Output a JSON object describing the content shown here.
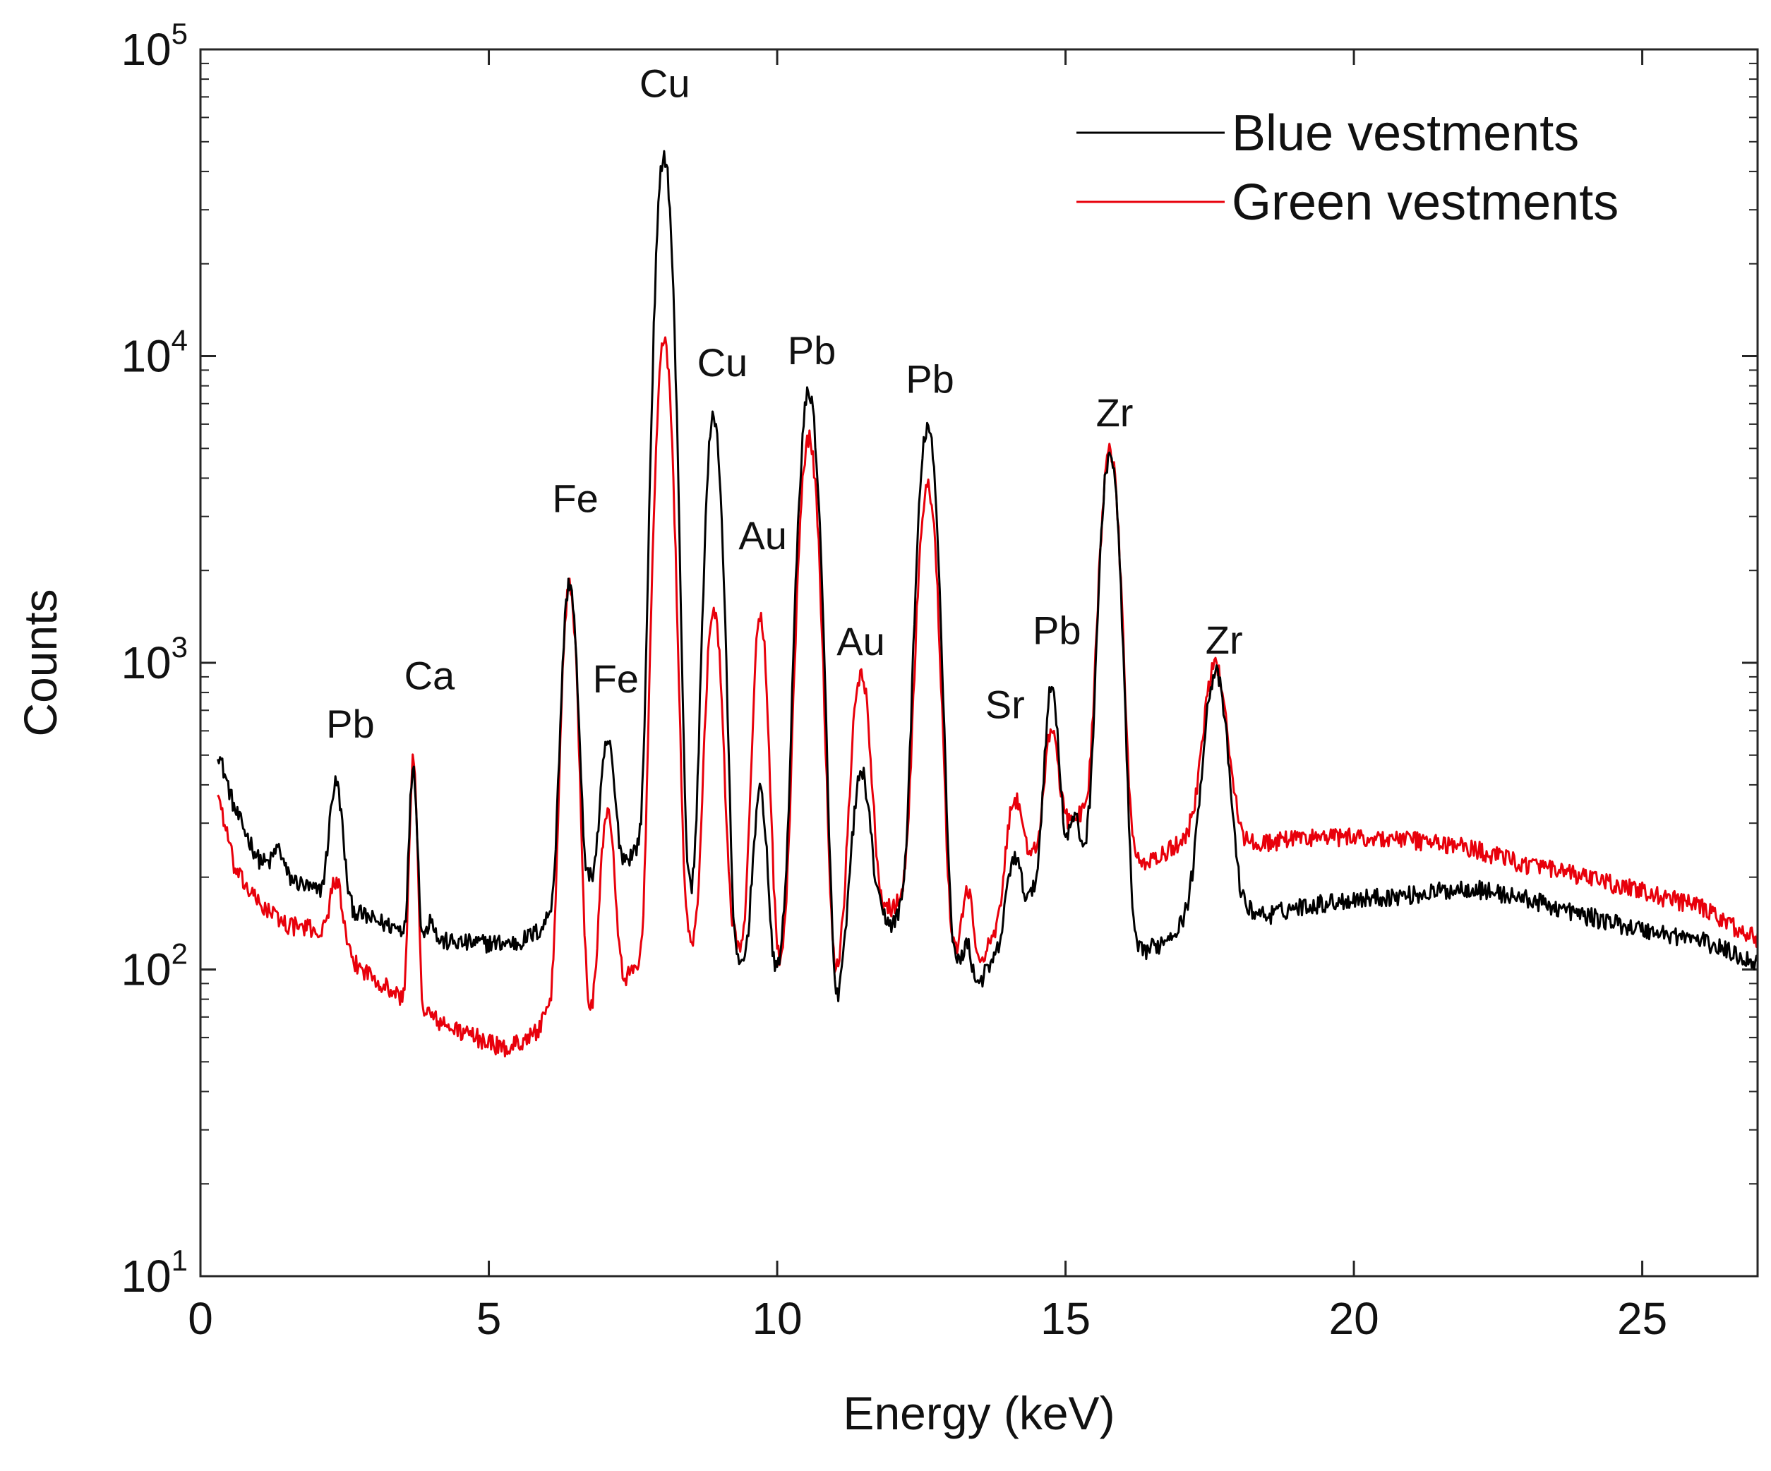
{
  "chart_data": {
    "type": "line",
    "xlabel": "Energy (keV)",
    "ylabel": "Counts",
    "xlim": [
      0,
      27
    ],
    "ylim": [
      10,
      100000
    ],
    "yscale": "log",
    "grid": false,
    "legend_position": "top-right",
    "x_ticks": [
      0,
      5,
      10,
      15,
      20,
      25
    ],
    "x_tick_labels": [
      "0",
      "5",
      "10",
      "15",
      "20",
      "25"
    ],
    "y_tick_exponents": [
      "1",
      "2",
      "3",
      "4",
      "5"
    ],
    "y_tick_base": "10",
    "legend": [
      {
        "label": "Blue vestments",
        "color": "#000000"
      },
      {
        "label": "Green vestments",
        "color": "#e8000b"
      }
    ],
    "series": [
      {
        "name": "Blue vestments",
        "color": "#000000",
        "background": [
          [
            0.3,
            520
          ],
          [
            0.6,
            330
          ],
          [
            1,
            230
          ],
          [
            1.5,
            200
          ],
          [
            2,
            180
          ],
          [
            2.5,
            160
          ],
          [
            3,
            145
          ],
          [
            3.5,
            135
          ],
          [
            4,
            125
          ],
          [
            4.5,
            122
          ],
          [
            5,
            122
          ],
          [
            5.5,
            122
          ],
          [
            5.9,
            135
          ],
          [
            6.2,
            170
          ],
          [
            6.6,
            190
          ],
          [
            7,
            200
          ],
          [
            7.4,
            230
          ],
          [
            7.9,
            290
          ],
          [
            8.3,
            180
          ],
          [
            8.8,
            160
          ],
          [
            9.3,
            100
          ],
          [
            9.6,
            110
          ],
          [
            9.9,
            80
          ],
          [
            10.3,
            180
          ],
          [
            10.7,
            150
          ],
          [
            11,
            70
          ],
          [
            11.5,
            170
          ],
          [
            12,
            140
          ],
          [
            12.5,
            200
          ],
          [
            13,
            110
          ],
          [
            13.4,
            85
          ],
          [
            13.8,
            110
          ],
          [
            14.3,
            160
          ],
          [
            14.6,
            200
          ],
          [
            15,
            230
          ],
          [
            15.4,
            240
          ],
          [
            15.8,
            200
          ],
          [
            16.1,
            110
          ],
          [
            16.6,
            120
          ],
          [
            17,
            140
          ],
          [
            17.6,
            230
          ],
          [
            18,
            160
          ],
          [
            18.5,
            150
          ],
          [
            19,
            160
          ],
          [
            20,
            170
          ],
          [
            21,
            175
          ],
          [
            22,
            185
          ],
          [
            23,
            170
          ],
          [
            24,
            150
          ],
          [
            25,
            135
          ],
          [
            26,
            125
          ],
          [
            27,
            105
          ]
        ],
        "peaks": [
          [
            1.35,
            40,
            0.08
          ],
          [
            2.35,
            240,
            0.1
          ],
          [
            3.69,
            330,
            0.055
          ],
          [
            4.0,
            25,
            0.05
          ],
          [
            6.4,
            1650,
            0.1
          ],
          [
            7.06,
            350,
            0.1
          ],
          [
            8.04,
            45000,
            0.11
          ],
          [
            8.9,
            6200,
            0.11
          ],
          [
            9.71,
            280,
            0.1
          ],
          [
            10.55,
            7500,
            0.13
          ],
          [
            11.45,
            280,
            0.13
          ],
          [
            12.61,
            5700,
            0.13
          ],
          [
            13.3,
            30,
            0.08
          ],
          [
            14.1,
            95,
            0.11
          ],
          [
            14.76,
            620,
            0.1
          ],
          [
            15.15,
            80,
            0.08
          ],
          [
            15.77,
            4600,
            0.13
          ],
          [
            17.6,
            700,
            0.17
          ]
        ]
      },
      {
        "name": "Green vestments",
        "color": "#e8000b",
        "background": [
          [
            0.3,
            380
          ],
          [
            0.6,
            210
          ],
          [
            1,
            165
          ],
          [
            1.5,
            140
          ],
          [
            2,
            135
          ],
          [
            2.5,
            110
          ],
          [
            3,
            95
          ],
          [
            3.5,
            80
          ],
          [
            3.8,
            76
          ],
          [
            4.2,
            66
          ],
          [
            4.8,
            60
          ],
          [
            5.3,
            55
          ],
          [
            5.8,
            62
          ],
          [
            6.1,
            75
          ],
          [
            6.5,
            90
          ],
          [
            6.8,
            70
          ],
          [
            7.2,
            85
          ],
          [
            7.7,
            110
          ],
          [
            8.3,
            150
          ],
          [
            8.7,
            100
          ],
          [
            9.2,
            130
          ],
          [
            9.5,
            110
          ],
          [
            10,
            100
          ],
          [
            10.5,
            130
          ],
          [
            11,
            90
          ],
          [
            11.5,
            160
          ],
          [
            12,
            160
          ],
          [
            12.5,
            200
          ],
          [
            12.9,
            120
          ],
          [
            13.4,
            100
          ],
          [
            13.8,
            130
          ],
          [
            14.3,
            230
          ],
          [
            14.6,
            260
          ],
          [
            15,
            300
          ],
          [
            15.5,
            340
          ],
          [
            15.9,
            250
          ],
          [
            16.2,
            220
          ],
          [
            16.6,
            230
          ],
          [
            17,
            260
          ],
          [
            17.6,
            330
          ],
          [
            18.1,
            260
          ],
          [
            18.6,
            260
          ],
          [
            19,
            270
          ],
          [
            20,
            270
          ],
          [
            21,
            265
          ],
          [
            22,
            250
          ],
          [
            23,
            220
          ],
          [
            24,
            200
          ],
          [
            25,
            180
          ],
          [
            26,
            160
          ],
          [
            27,
            125
          ]
        ],
        "peaks": [
          [
            2.35,
            80,
            0.1
          ],
          [
            3.69,
            400,
            0.055
          ],
          [
            6.4,
            1720,
            0.1
          ],
          [
            7.06,
            260,
            0.1
          ],
          [
            8.04,
            11000,
            0.11
          ],
          [
            8.9,
            1400,
            0.11
          ],
          [
            9.71,
            1300,
            0.1
          ],
          [
            10.55,
            5300,
            0.13
          ],
          [
            11.45,
            780,
            0.13
          ],
          [
            12.61,
            3600,
            0.13
          ],
          [
            13.3,
            80,
            0.08
          ],
          [
            14.1,
            180,
            0.11
          ],
          [
            14.76,
            330,
            0.1
          ],
          [
            15.77,
            4600,
            0.13
          ],
          [
            17.6,
            650,
            0.17
          ]
        ]
      }
    ],
    "annotations": [
      {
        "text": "Pb",
        "x": 2.6,
        "y": 570
      },
      {
        "text": "Ca",
        "x": 3.97,
        "y": 820
      },
      {
        "text": "Fe",
        "x": 6.5,
        "y": 3100
      },
      {
        "text": "Fe",
        "x": 7.2,
        "y": 800
      },
      {
        "text": "Cu",
        "x": 8.05,
        "y": 70000
      },
      {
        "text": "Cu",
        "x": 9.05,
        "y": 8600
      },
      {
        "text": "Au",
        "x": 9.75,
        "y": 2350
      },
      {
        "text": "Pb",
        "x": 10.6,
        "y": 9400
      },
      {
        "text": "Au",
        "x": 11.45,
        "y": 1060
      },
      {
        "text": "Pb",
        "x": 12.65,
        "y": 7600
      },
      {
        "text": "Sr",
        "x": 13.95,
        "y": 660
      },
      {
        "text": "Pb",
        "x": 14.85,
        "y": 1150
      },
      {
        "text": "Zr",
        "x": 15.85,
        "y": 5900
      },
      {
        "text": "Zr",
        "x": 17.75,
        "y": 1070
      }
    ]
  }
}
